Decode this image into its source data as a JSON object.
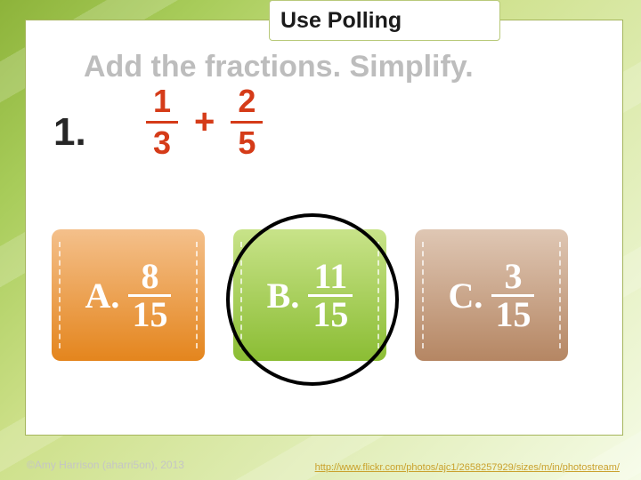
{
  "pill_title": "Use Polling",
  "headline": "Add the fractions.  Simplify.",
  "question_number": "1.",
  "expression": {
    "a_num": "1",
    "a_den": "3",
    "op": "+",
    "b_num": "2",
    "b_den": "5"
  },
  "answers": [
    {
      "letter": "A.",
      "num": "8",
      "den": "15",
      "style": "orange",
      "barw": 48
    },
    {
      "letter": "B.",
      "num": "11",
      "den": "15",
      "style": "green",
      "barw": 50
    },
    {
      "letter": "C.",
      "num": "3",
      "den": "15",
      "style": "brown",
      "barw": 48
    }
  ],
  "circle_answer_index": 1,
  "credit": "©Amy Harrison (aharri5on), 2013",
  "link": "http://www.flickr.com/photos/ajc1/2658257929/sizes/m/in/photostream/",
  "colors": {
    "accent": "#d53b18"
  }
}
